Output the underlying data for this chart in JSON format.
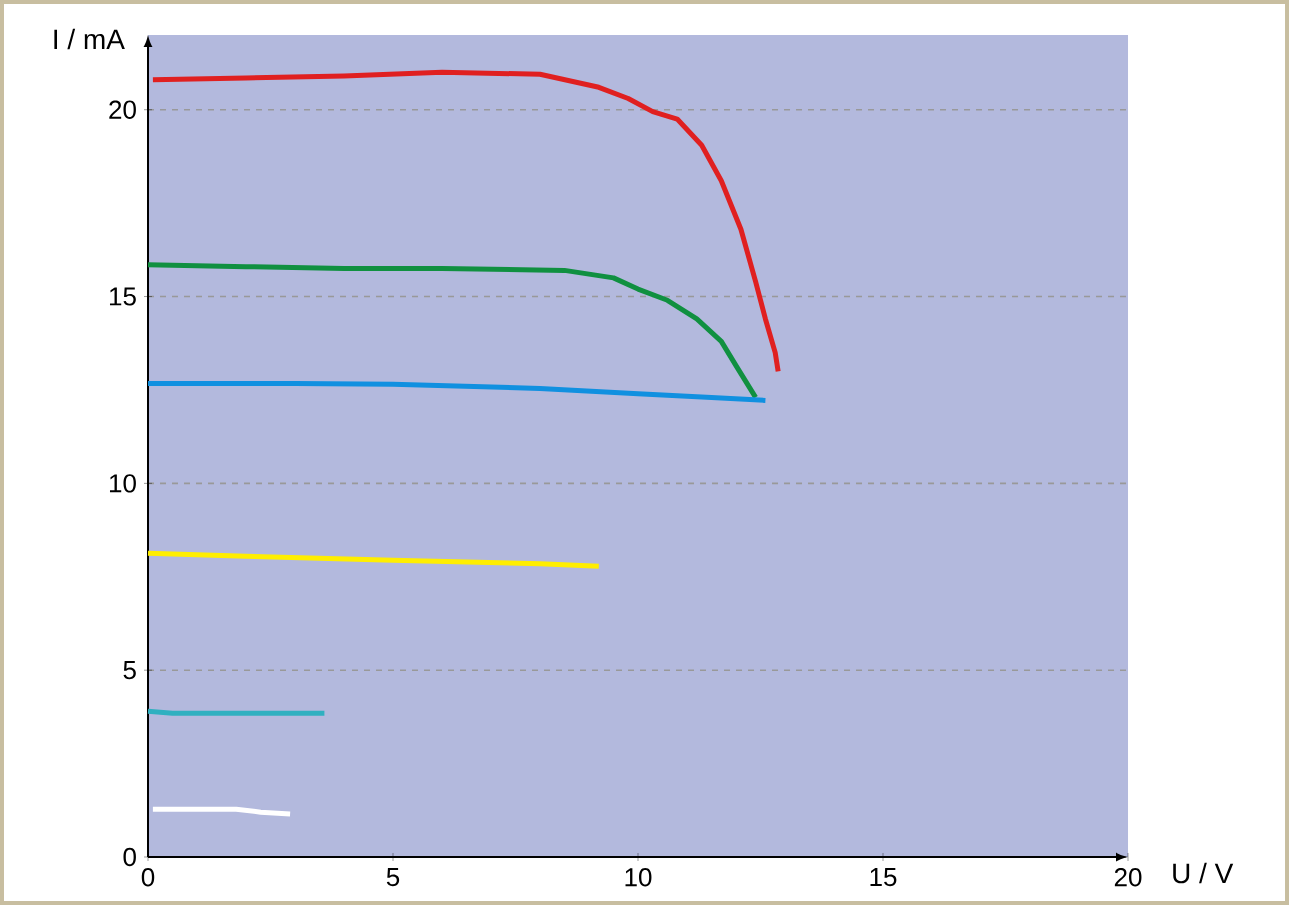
{
  "chart_data": {
    "type": "line",
    "xlabel": "U / V",
    "ylabel": "I / mA",
    "xlim": [
      0,
      20
    ],
    "ylim": [
      0,
      22
    ],
    "xticks": [
      0,
      5,
      10,
      15,
      20
    ],
    "yticks": [
      0,
      5,
      10,
      15,
      20
    ],
    "grid": "y",
    "marker": "none",
    "line_style": "solid",
    "series": [
      {
        "color": "#e02020",
        "x": [
          0.1,
          2,
          4,
          6,
          8,
          9.2,
          9.8,
          10.3,
          10.8,
          11.3,
          11.7,
          12.1,
          12.4,
          12.6,
          12.8,
          12.86
        ],
        "values": [
          20.8,
          20.85,
          20.9,
          21.0,
          20.95,
          20.6,
          20.3,
          19.95,
          19.75,
          19.05,
          18.1,
          16.8,
          15.4,
          14.4,
          13.5,
          13.0
        ]
      },
      {
        "color": "#109040",
        "x": [
          0,
          2,
          4,
          6,
          8.5,
          9.5,
          10,
          10.6,
          11.2,
          11.7,
          12.0,
          12.4
        ],
        "values": [
          15.85,
          15.8,
          15.75,
          15.75,
          15.7,
          15.5,
          15.2,
          14.9,
          14.4,
          13.8,
          13.15,
          12.3
        ]
      },
      {
        "color": "#1090e0",
        "x": [
          0,
          3,
          5,
          8,
          10,
          11.5,
          12.6
        ],
        "values": [
          12.67,
          12.67,
          12.65,
          12.54,
          12.4,
          12.3,
          12.22
        ]
      },
      {
        "color": "#ffee00",
        "x": [
          0,
          2,
          5,
          8,
          9.2
        ],
        "values": [
          8.13,
          8.05,
          7.94,
          7.85,
          7.78
        ]
      },
      {
        "color": "#30b0c0",
        "x": [
          0,
          0.5,
          3.6
        ],
        "values": [
          3.9,
          3.85,
          3.85
        ]
      },
      {
        "color": "#ffffff",
        "x": [
          0.1,
          1.8,
          2.3,
          2.9
        ],
        "values": [
          1.28,
          1.28,
          1.2,
          1.15
        ]
      }
    ]
  }
}
